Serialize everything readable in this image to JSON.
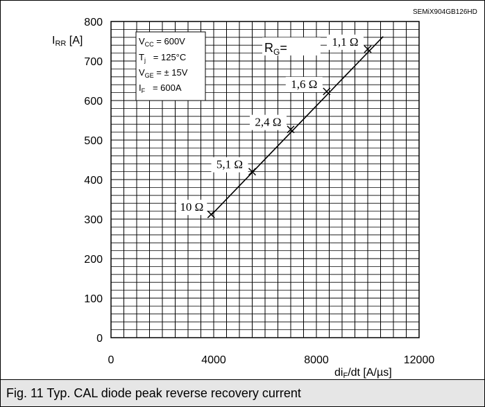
{
  "part_number": "SEMiX904GB126HD",
  "caption": "Fig. 11 Typ. CAL diode peak reverse recovery current",
  "chart_data": {
    "type": "line",
    "title": "",
    "xlabel": {
      "main": "di",
      "sub": "F",
      "rest": "/dt [A/µs]"
    },
    "ylabel": {
      "main": "I",
      "sub": "RR",
      "rest": " [A]"
    },
    "xlim": [
      0,
      12000
    ],
    "ylim": [
      0,
      800
    ],
    "x_ticks": [
      "0",
      "4000",
      "8000",
      "12000"
    ],
    "y_ticks": [
      "0",
      "100",
      "200",
      "300",
      "400",
      "500",
      "600",
      "700",
      "800"
    ],
    "grid": true,
    "conditions": [
      {
        "main": "V",
        "sub": "CC",
        "rest": " = 600V"
      },
      {
        "main": "T",
        "sub": "j",
        "rest": "   = 125°C"
      },
      {
        "main": "V",
        "sub": "GE",
        "rest": " = ± 15V"
      },
      {
        "main": "I",
        "sub": "F",
        "rest": "   = 600A"
      }
    ],
    "rg_header": {
      "main": "R",
      "sub": "G",
      "rest": "="
    },
    "series": [
      {
        "x": [
          3900,
          10600
        ],
        "y": [
          310,
          762
        ]
      }
    ],
    "points": [
      {
        "label": "10 Ω",
        "x": 3900,
        "y": 312
      },
      {
        "label": "5,1 Ω",
        "x": 5500,
        "y": 420
      },
      {
        "label": "2,4 Ω",
        "x": 7000,
        "y": 527
      },
      {
        "label": "1,6 Ω",
        "x": 8400,
        "y": 623
      },
      {
        "label": "1,1 Ω",
        "x": 10000,
        "y": 730
      }
    ]
  }
}
